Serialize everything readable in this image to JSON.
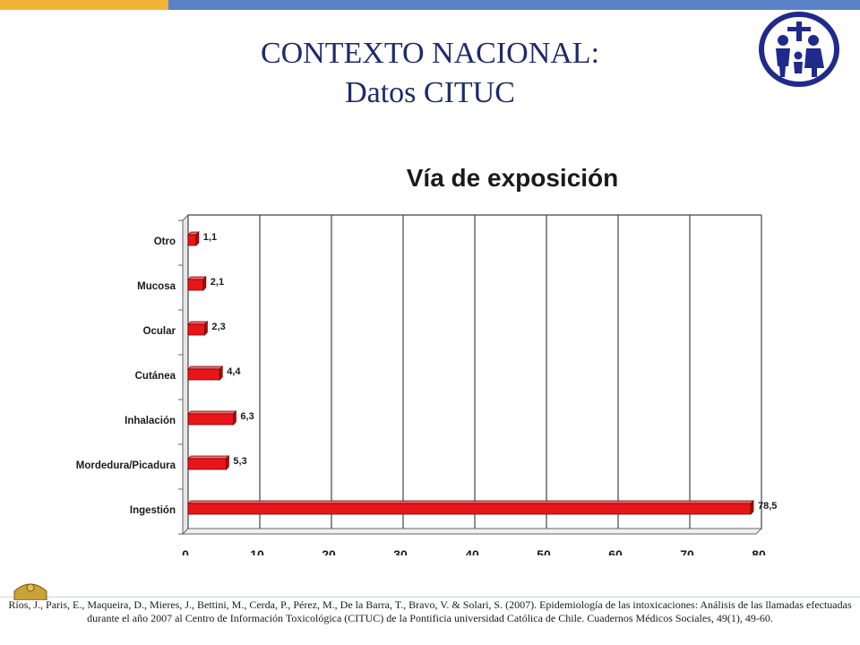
{
  "slide": {
    "title_line1": "CONTEXTO NACIONAL:",
    "title_line2": "Datos CITUC"
  },
  "colors": {
    "title": "#1f2a6b",
    "bar_fill": "#e8161a",
    "bar_top": "#f26b6b",
    "grid": "#444444",
    "top_bar_gold": "#f2b336",
    "top_bar_blue": "#5a82c7",
    "logo_blue": "#1f2a8a"
  },
  "logo": {
    "icon": "family-church-logo-icon"
  },
  "chart_data": {
    "type": "bar",
    "orientation": "horizontal",
    "title": "Vía de exposición",
    "categories": [
      "Otro",
      "Mucosa",
      "Ocular",
      "Cutánea",
      "Inhalación",
      "Mordedura/Picadura",
      "Ingestión"
    ],
    "values": [
      1.1,
      2.1,
      2.3,
      4.4,
      6.3,
      5.3,
      78.5
    ],
    "value_labels": [
      "1,1",
      "2,1",
      "2,3",
      "4,4",
      "6,3",
      "5,3",
      "78,5"
    ],
    "xlim": [
      0,
      80
    ],
    "x_ticks": [
      0,
      10,
      20,
      30,
      40,
      50,
      60,
      70,
      80
    ],
    "grid": "vertical",
    "legend": "none",
    "xlabel": "",
    "ylabel": ""
  },
  "footer": {
    "citation": "Ríos, J., Paris, E., Maqueira, D., Mieres, J., Bettini, M., Cerda, P., Pérez, M., De la Barra, T., Bravo, V. & Solari, S. (2007). Epidemiología de las intoxicaciones: Análisis de las llamadas efectuadas durante el año 2007 al Centro de Información Toxicológica (CITUC) de la Pontificia universidad Católica de Chile. Cuadernos Médicos Sociales, 49(1), 49-60.",
    "emblem_icon": "crest-emblem-icon"
  }
}
